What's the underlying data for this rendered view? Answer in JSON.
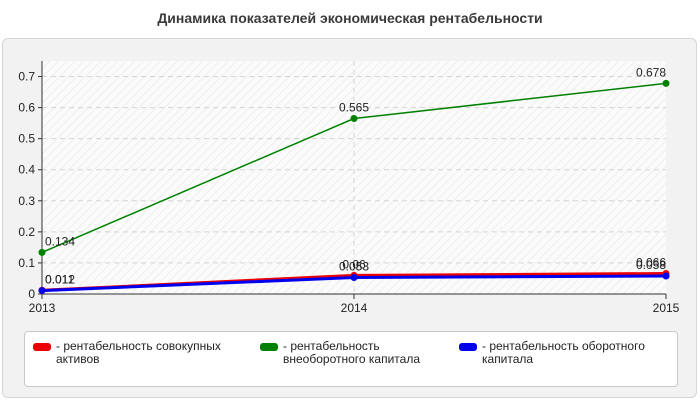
{
  "title": "Динамика показателей экономическая рентабельности",
  "chart_data": {
    "type": "line",
    "title": "Динамика показателей экономическая рентабельности",
    "x": [
      "2013",
      "2014",
      "2015"
    ],
    "ylim": [
      0,
      0.75
    ],
    "yticks": [
      "0",
      "0.1",
      "0.2",
      "0.3",
      "0.4",
      "0.5",
      "0.6",
      "0.7"
    ],
    "grid": true,
    "legend_position": "bottom",
    "series": [
      {
        "name": "- рентабельность совокупных активов",
        "color": "#ee0000",
        "values": [
          0.012,
          0.06,
          0.066
        ],
        "labels": [
          "0.012",
          "0.06",
          "0.066"
        ]
      },
      {
        "name": "- рентабельность внеоборотного капитала",
        "color": "#008000",
        "values": [
          0.134,
          0.565,
          0.678
        ],
        "labels": [
          "0.134",
          "0.565",
          "0.678"
        ]
      },
      {
        "name": "- рентабельность оборотного капитала",
        "color": "#0000ee",
        "values": [
          0.011,
          0.053,
          0.058
        ],
        "labels": [
          "0.011",
          "0.053",
          "0.058"
        ]
      }
    ]
  }
}
